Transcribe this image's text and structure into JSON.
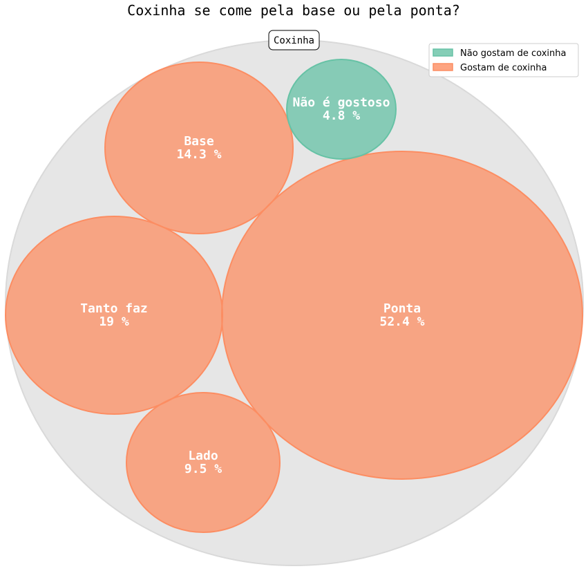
{
  "chart_data": {
    "type": "circle-packing",
    "title": "Coxinha se come pela base ou pela ponta?",
    "root_label": "Coxinha",
    "legend": {
      "placement": "top-right",
      "entries": [
        {
          "label": "Não gostam de coxinha",
          "color": "#66c2a5"
        },
        {
          "label": "Gostam de coxinha",
          "color": "#fc8d62"
        }
      ]
    },
    "items": [
      {
        "label": "Ponta",
        "percent_label": "52.4 %",
        "value": 52.4,
        "group": "Gostam de coxinha",
        "color": "#fc8d62"
      },
      {
        "label": "Tanto faz",
        "percent_label": "19 %",
        "value": 19.0,
        "group": "Gostam de coxinha",
        "color": "#fc8d62"
      },
      {
        "label": "Base",
        "percent_label": "14.3 %",
        "value": 14.3,
        "group": "Gostam de coxinha",
        "color": "#fc8d62"
      },
      {
        "label": "Lado",
        "percent_label": "9.5 %",
        "value": 9.5,
        "group": "Gostam de coxinha",
        "color": "#fc8d62"
      },
      {
        "label": "Não é gostoso",
        "percent_label": "4.8 %",
        "value": 4.8,
        "group": "Não gostam de coxinha",
        "color": "#66c2a5"
      }
    ]
  }
}
